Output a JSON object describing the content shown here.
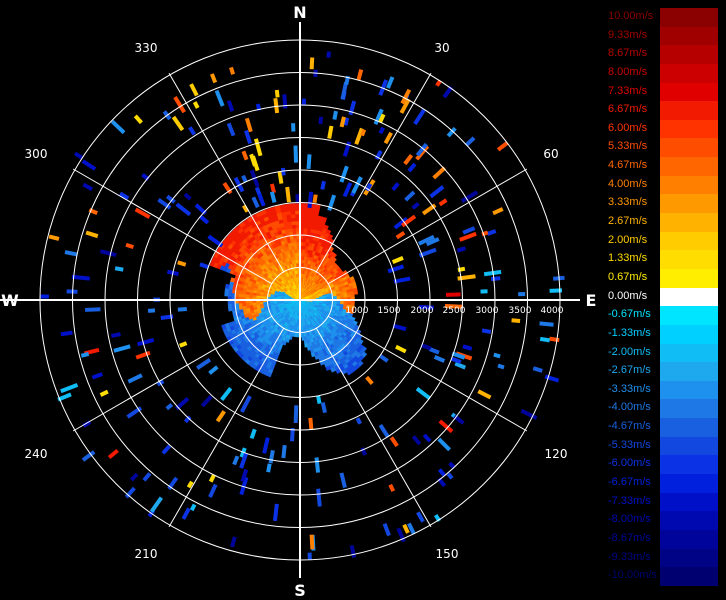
{
  "compass": {
    "north": "N",
    "east": "E",
    "south": "S",
    "west": "W"
  },
  "azimuth_labels": [
    "30",
    "60",
    "120",
    "150",
    "210",
    "240",
    "300",
    "330"
  ],
  "range_labels": [
    "1000",
    "1500",
    "2000",
    "2500",
    "3000",
    "3500",
    "4000"
  ],
  "legend": {
    "title": "",
    "entries": [
      {
        "label": "10.00m/s",
        "color": "#8b0000"
      },
      {
        "label": "9.33m/s",
        "color": "#a00000"
      },
      {
        "label": "8.67m/s",
        "color": "#b60000"
      },
      {
        "label": "8.00m/s",
        "color": "#cc0000"
      },
      {
        "label": "7.33m/s",
        "color": "#e00000"
      },
      {
        "label": "6.67m/s",
        "color": "#f21a00"
      },
      {
        "label": "6.00m/s",
        "color": "#ff3300"
      },
      {
        "label": "5.33m/s",
        "color": "#ff4d00"
      },
      {
        "label": "4.67m/s",
        "color": "#ff6600"
      },
      {
        "label": "4.00m/s",
        "color": "#ff8000"
      },
      {
        "label": "3.33m/s",
        "color": "#ff9900"
      },
      {
        "label": "2.67m/s",
        "color": "#ffb300"
      },
      {
        "label": "2.00m/s",
        "color": "#ffcc00"
      },
      {
        "label": "1.33m/s",
        "color": "#ffdd00"
      },
      {
        "label": "0.67m/s",
        "color": "#ffee00"
      },
      {
        "label": "0.00m/s",
        "color": "#ffffff"
      },
      {
        "label": "-0.67m/s",
        "color": "#00e5ff"
      },
      {
        "label": "-1.33m/s",
        "color": "#00d0ff"
      },
      {
        "label": "-2.00m/s",
        "color": "#10bdf5"
      },
      {
        "label": "-2.67m/s",
        "color": "#1ea8ee"
      },
      {
        "label": "-3.33m/s",
        "color": "#1e90ee"
      },
      {
        "label": "-4.00m/s",
        "color": "#1e78e6"
      },
      {
        "label": "-4.67m/s",
        "color": "#1860e0"
      },
      {
        "label": "-5.33m/s",
        "color": "#1248e0"
      },
      {
        "label": "-6.00m/s",
        "color": "#0c32e6"
      },
      {
        "label": "-6.67m/s",
        "color": "#0020dd"
      },
      {
        "label": "-7.33m/s",
        "color": "#0010c8"
      },
      {
        "label": "-8.00m/s",
        "color": "#0008b0"
      },
      {
        "label": "-8.67m/s",
        "color": "#00049a"
      },
      {
        "label": "-9.33m/s",
        "color": "#000385"
      },
      {
        "label": "-10.00m/s",
        "color": "#000070"
      }
    ]
  }
}
